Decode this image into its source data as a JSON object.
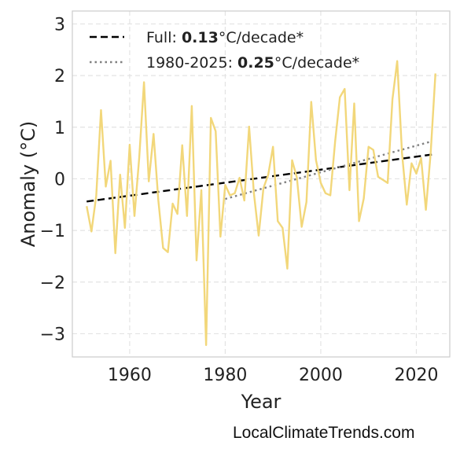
{
  "chart_data": {
    "type": "line",
    "xlabel": "Year",
    "ylabel": "Anomaly (°C)",
    "xlim": [
      1948,
      2027
    ],
    "ylim": [
      -3.45,
      3.25
    ],
    "x_ticks": [
      1960,
      1980,
      2000,
      2020
    ],
    "y_ticks": [
      3,
      2,
      1,
      0,
      -1,
      -2,
      -3
    ],
    "y_tick_labels": [
      "3",
      "2",
      "1",
      "0",
      "−1",
      "−2",
      "−3"
    ],
    "grid": true,
    "legend_position": "top-left",
    "colors": {
      "series": "#f2d77a",
      "full_trend": "#000000",
      "recent_trend": "#808080"
    },
    "series": [
      {
        "x": [
          1951,
          1952,
          1953,
          1954,
          1955,
          1956,
          1957,
          1958,
          1959,
          1960,
          1961,
          1962,
          1963,
          1964,
          1965,
          1966,
          1967,
          1968,
          1969,
          1970,
          1971,
          1972,
          1973,
          1974,
          1975,
          1976,
          1977,
          1978,
          1979,
          1980,
          1981,
          1982,
          1983,
          1984,
          1985,
          1986,
          1987,
          1988,
          1989,
          1990,
          1991,
          1992,
          1993,
          1994,
          1995,
          1996,
          1997,
          1998,
          1999,
          2000,
          2001,
          2002,
          2003,
          2004,
          2005,
          2006,
          2007,
          2008,
          2009,
          2010,
          2011,
          2012,
          2013,
          2014,
          2015,
          2016,
          2017,
          2018,
          2019,
          2020,
          2021,
          2022,
          2023,
          2024
        ],
        "y": [
          -0.53,
          -1.02,
          -0.33,
          1.33,
          -0.15,
          0.35,
          -1.44,
          0.08,
          -0.95,
          0.66,
          -0.72,
          0.41,
          1.87,
          -0.05,
          0.87,
          -0.42,
          -1.34,
          -1.42,
          -0.48,
          -0.68,
          0.65,
          -0.72,
          1.41,
          -1.58,
          -0.22,
          -3.22,
          1.18,
          0.92,
          -1.12,
          -0.12,
          -0.32,
          -0.28,
          0.02,
          -0.42,
          1.01,
          -0.28,
          -1.1,
          -0.18,
          0.08,
          0.62,
          -0.82,
          -0.95,
          -1.74,
          0.36,
          0.02,
          -0.93,
          -0.45,
          1.49,
          0.36,
          -0.08,
          -0.28,
          -0.32,
          0.72,
          1.58,
          1.74,
          -0.22,
          1.46,
          -0.82,
          -0.38,
          0.62,
          0.56,
          0.04,
          -0.02,
          -0.08,
          1.54,
          2.28,
          0.5,
          -0.5,
          0.3,
          0.1,
          0.4,
          -0.6,
          0.5,
          2.04
        ]
      }
    ],
    "trends": [
      {
        "x": [
          1951,
          2024
        ],
        "y": [
          -0.44,
          0.48
        ],
        "style": "dashed"
      },
      {
        "x": [
          1980,
          2023
        ],
        "y": [
          -0.39,
          0.72
        ],
        "style": "dotted"
      }
    ]
  },
  "legend": [
    {
      "prefix": "Full: ",
      "bold": "0.13",
      "suffix": "°C/decade*"
    },
    {
      "prefix": "1980-2025: ",
      "bold": "0.25",
      "suffix": "°C/decade*"
    }
  ],
  "watermark": "LocalClimateTrends.com"
}
